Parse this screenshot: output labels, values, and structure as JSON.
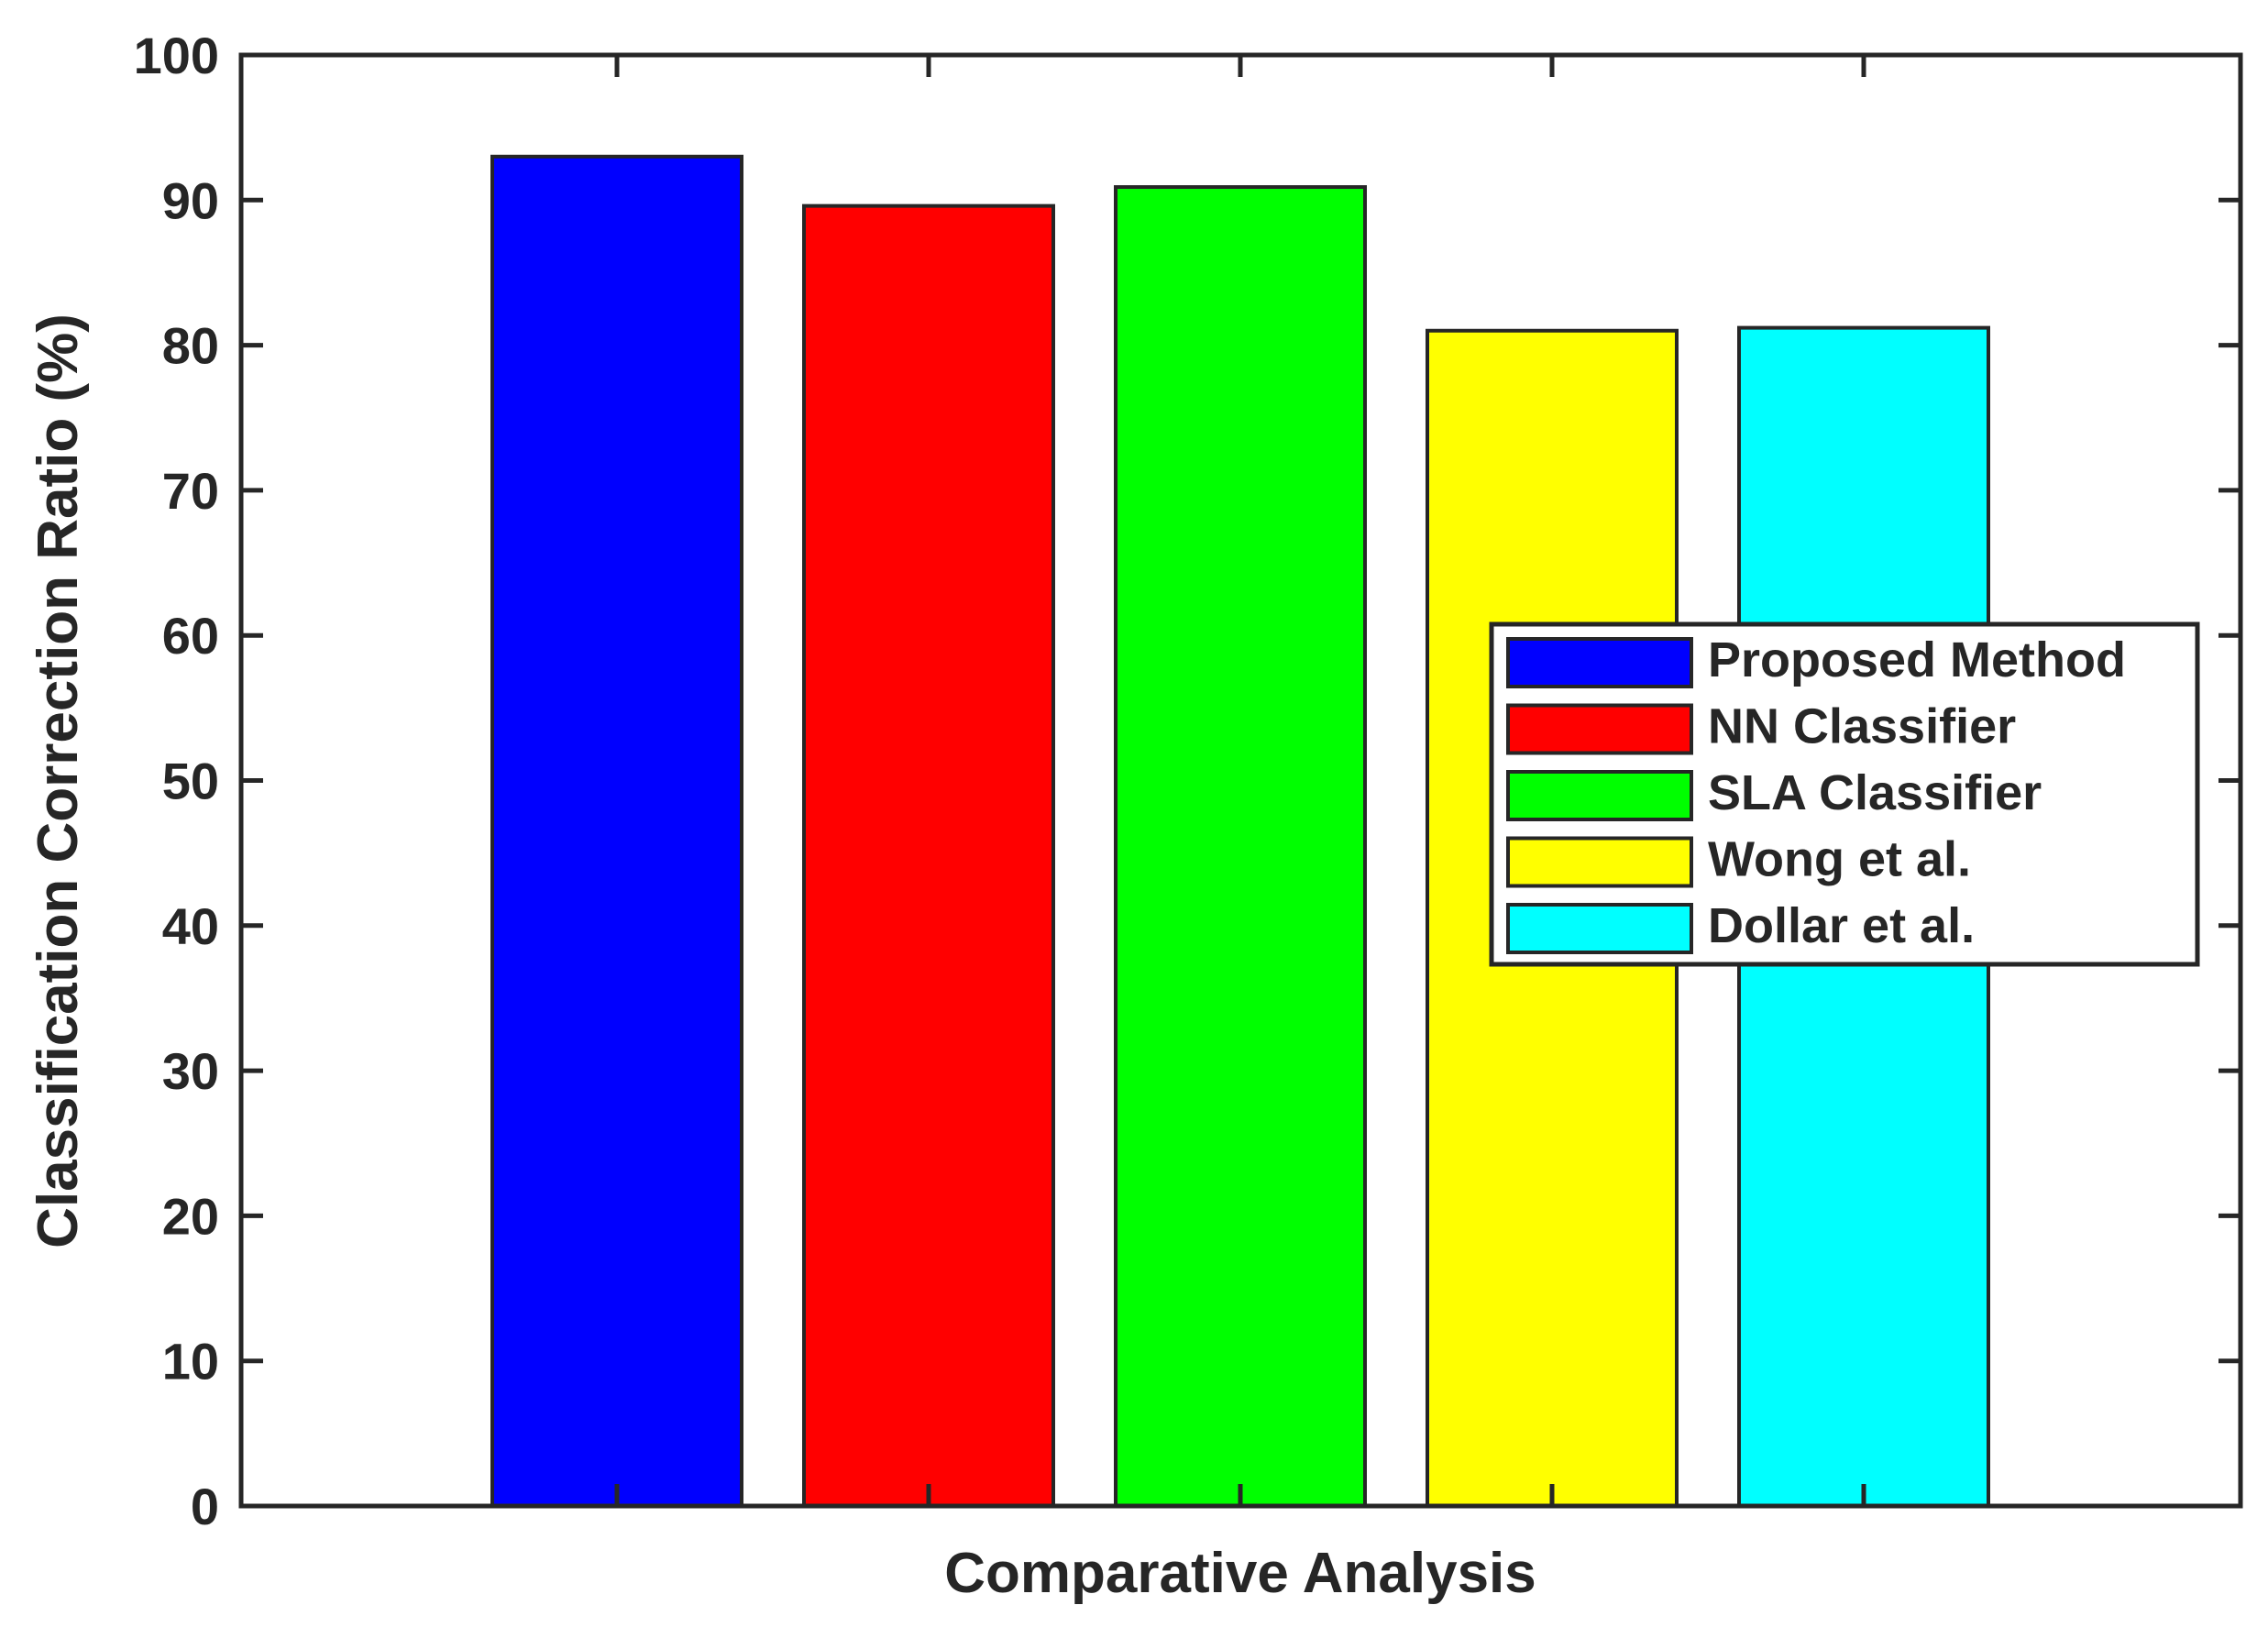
{
  "chart_data": {
    "type": "bar",
    "title": "",
    "xlabel": "Comparative Analysis",
    "ylabel": "Classification Correction Ratio (%)",
    "ylim": [
      0,
      100
    ],
    "yticks": [
      "0",
      "10",
      "20",
      "30",
      "40",
      "50",
      "60",
      "70",
      "80",
      "90",
      "100"
    ],
    "grid": false,
    "legend_position": "right-middle",
    "series": [
      {
        "name": "Proposed Method",
        "value": 93.0,
        "color": "#0000ff"
      },
      {
        "name": "NN Classifier",
        "value": 89.6,
        "color": "#ff0000"
      },
      {
        "name": "SLA Classifier",
        "value": 90.9,
        "color": "#00ff00"
      },
      {
        "name": "Wong et al.",
        "value": 81.0,
        "color": "#ffff00"
      },
      {
        "name": "Dollar et al.",
        "value": 81.2,
        "color": "#00ffff"
      }
    ]
  }
}
